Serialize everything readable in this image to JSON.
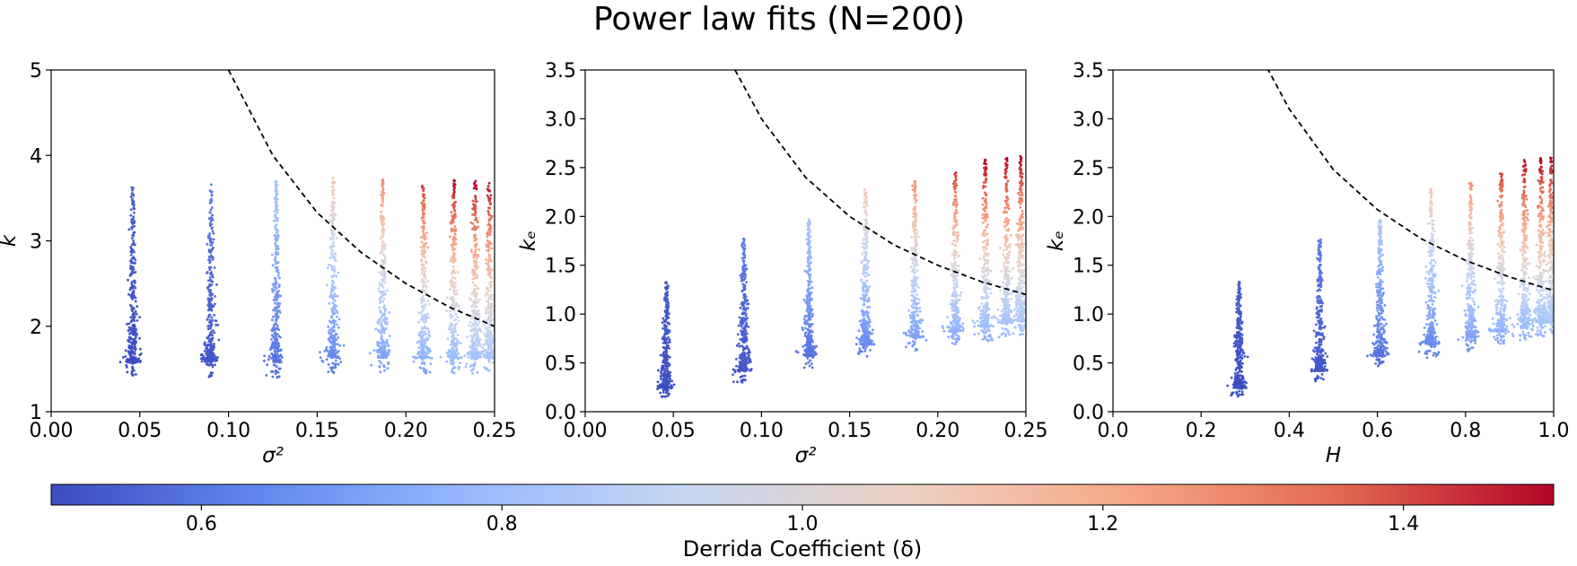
{
  "title": "Power law fits (N=200)",
  "colorbar": {
    "label": "Derrida Coefficient (δ)",
    "range": [
      0.5,
      1.5
    ],
    "ticks": [
      "0.6",
      "0.8",
      "1.0",
      "1.2",
      "1.4"
    ],
    "colormap": "coolwarm",
    "colors": [
      "#3b4cc0",
      "#6688ee",
      "#9abbff",
      "#c9d7f0",
      "#edd1c2",
      "#f7a889",
      "#e26952",
      "#b40426"
    ]
  },
  "chart_data": [
    {
      "type": "scatter",
      "xlabel": "σ²",
      "ylabel": "k",
      "xlim": [
        0,
        0.25
      ],
      "ylim": [
        1,
        5
      ],
      "xticks": [
        "0.00",
        "0.05",
        "0.10",
        "0.15",
        "0.20",
        "0.25"
      ],
      "yticks": [
        "1",
        "2",
        "3",
        "4",
        "5"
      ],
      "clusters": [
        {
          "x": 0.046,
          "y_min": 1.4,
          "y_max": 3.65,
          "delta_min": 0.5,
          "delta_max": 0.55
        },
        {
          "x": 0.09,
          "y_min": 1.4,
          "y_max": 3.7,
          "delta_min": 0.52,
          "delta_max": 0.62
        },
        {
          "x": 0.127,
          "y_min": 1.4,
          "y_max": 3.7,
          "delta_min": 0.58,
          "delta_max": 0.85
        },
        {
          "x": 0.159,
          "y_min": 1.45,
          "y_max": 3.75,
          "delta_min": 0.62,
          "delta_max": 1.12
        },
        {
          "x": 0.187,
          "y_min": 1.45,
          "y_max": 3.72,
          "delta_min": 0.68,
          "delta_max": 1.28
        },
        {
          "x": 0.21,
          "y_min": 1.45,
          "y_max": 3.65,
          "delta_min": 0.72,
          "delta_max": 1.42
        },
        {
          "x": 0.227,
          "y_min": 1.45,
          "y_max": 3.72,
          "delta_min": 0.75,
          "delta_max": 1.5
        },
        {
          "x": 0.239,
          "y_min": 1.45,
          "y_max": 3.7,
          "delta_min": 0.78,
          "delta_max": 1.5
        },
        {
          "x": 0.247,
          "y_min": 1.45,
          "y_max": 3.7,
          "delta_min": 0.8,
          "delta_max": 1.5
        }
      ],
      "fit_curve": {
        "style": "dashed",
        "x": [
          0.1,
          0.125,
          0.15,
          0.175,
          0.2,
          0.225,
          0.25
        ],
        "y": [
          5.0,
          4.0,
          3.33,
          2.86,
          2.5,
          2.22,
          2.0
        ]
      }
    },
    {
      "type": "scatter",
      "xlabel": "σ²",
      "ylabel": "kₑ",
      "xlim": [
        0,
        0.25
      ],
      "ylim": [
        0,
        3.5
      ],
      "xticks": [
        "0.00",
        "0.05",
        "0.10",
        "0.15",
        "0.20",
        "0.25"
      ],
      "yticks": [
        "0.0",
        "0.5",
        "1.0",
        "1.5",
        "2.0",
        "2.5",
        "3.0",
        "3.5"
      ],
      "clusters": [
        {
          "x": 0.046,
          "y_min": 0.15,
          "y_max": 1.33,
          "delta_min": 0.5,
          "delta_max": 0.55
        },
        {
          "x": 0.09,
          "y_min": 0.3,
          "y_max": 1.77,
          "delta_min": 0.52,
          "delta_max": 0.62
        },
        {
          "x": 0.127,
          "y_min": 0.45,
          "y_max": 1.97,
          "delta_min": 0.58,
          "delta_max": 0.85
        },
        {
          "x": 0.159,
          "y_min": 0.55,
          "y_max": 2.28,
          "delta_min": 0.62,
          "delta_max": 1.12
        },
        {
          "x": 0.187,
          "y_min": 0.62,
          "y_max": 2.38,
          "delta_min": 0.68,
          "delta_max": 1.28
        },
        {
          "x": 0.21,
          "y_min": 0.68,
          "y_max": 2.45,
          "delta_min": 0.72,
          "delta_max": 1.42
        },
        {
          "x": 0.227,
          "y_min": 0.72,
          "y_max": 2.58,
          "delta_min": 0.75,
          "delta_max": 1.5
        },
        {
          "x": 0.239,
          "y_min": 0.76,
          "y_max": 2.6,
          "delta_min": 0.78,
          "delta_max": 1.5
        },
        {
          "x": 0.247,
          "y_min": 0.78,
          "y_max": 2.62,
          "delta_min": 0.8,
          "delta_max": 1.5
        }
      ],
      "fit_curve": {
        "style": "dashed",
        "x": [
          0.085,
          0.1,
          0.125,
          0.15,
          0.175,
          0.2,
          0.225,
          0.25
        ],
        "y": [
          3.5,
          3.0,
          2.4,
          2.0,
          1.71,
          1.5,
          1.33,
          1.2
        ]
      }
    },
    {
      "type": "scatter",
      "xlabel": "H",
      "ylabel": "kₑ",
      "xlim": [
        0,
        1
      ],
      "ylim": [
        0,
        3.5
      ],
      "xticks": [
        "0.0",
        "0.2",
        "0.4",
        "0.6",
        "0.8",
        "1.0"
      ],
      "yticks": [
        "0.0",
        "0.5",
        "1.0",
        "1.5",
        "2.0",
        "2.5",
        "3.0",
        "3.5"
      ],
      "clusters": [
        {
          "x": 0.286,
          "y_min": 0.15,
          "y_max": 1.33,
          "delta_min": 0.5,
          "delta_max": 0.55
        },
        {
          "x": 0.469,
          "y_min": 0.3,
          "y_max": 1.77,
          "delta_min": 0.52,
          "delta_max": 0.62
        },
        {
          "x": 0.606,
          "y_min": 0.45,
          "y_max": 1.97,
          "delta_min": 0.58,
          "delta_max": 0.85
        },
        {
          "x": 0.722,
          "y_min": 0.55,
          "y_max": 2.28,
          "delta_min": 0.62,
          "delta_max": 1.12
        },
        {
          "x": 0.811,
          "y_min": 0.62,
          "y_max": 2.38,
          "delta_min": 0.68,
          "delta_max": 1.28
        },
        {
          "x": 0.881,
          "y_min": 0.68,
          "y_max": 2.45,
          "delta_min": 0.72,
          "delta_max": 1.42
        },
        {
          "x": 0.934,
          "y_min": 0.72,
          "y_max": 2.58,
          "delta_min": 0.75,
          "delta_max": 1.5
        },
        {
          "x": 0.971,
          "y_min": 0.76,
          "y_max": 2.6,
          "delta_min": 0.78,
          "delta_max": 1.5
        },
        {
          "x": 0.994,
          "y_min": 0.78,
          "y_max": 2.62,
          "delta_min": 0.8,
          "delta_max": 1.5
        }
      ],
      "fit_curve": {
        "style": "dashed",
        "x": [
          0.35,
          0.4,
          0.5,
          0.6,
          0.7,
          0.8,
          0.9,
          1.0
        ],
        "y": [
          3.52,
          3.1,
          2.48,
          2.07,
          1.77,
          1.55,
          1.38,
          1.24
        ]
      }
    }
  ]
}
